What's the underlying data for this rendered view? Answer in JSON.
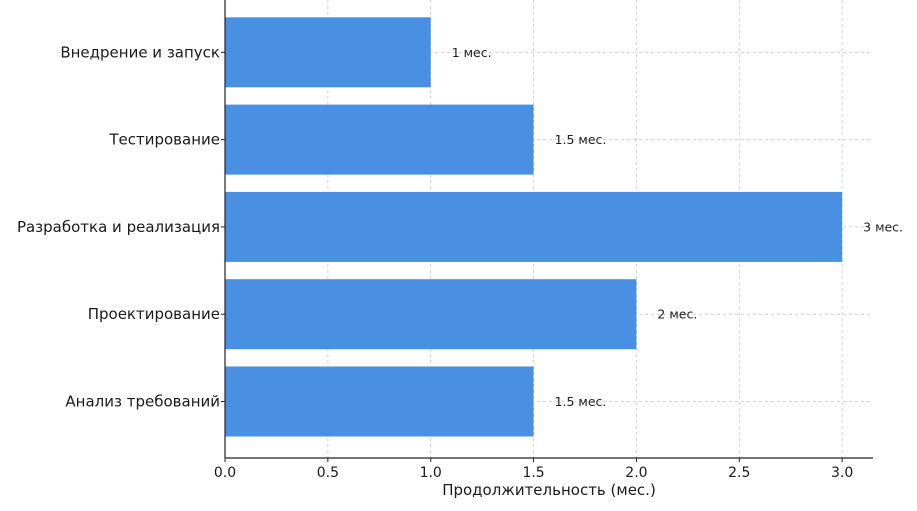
{
  "chart_data": {
    "type": "bar",
    "orientation": "horizontal",
    "categories": [
      "Анализ требований",
      "Проектирование",
      "Разработка и реализация",
      "Тестирование",
      "Внедрение и запуск"
    ],
    "values": [
      1.5,
      2,
      3,
      1.5,
      1
    ],
    "data_labels": [
      "1.5 мес.",
      "2 мес.",
      "3 мес.",
      "1.5 мес.",
      "1 мес."
    ],
    "title": "",
    "xlabel": "Продолжительность (мес.)",
    "ylabel": "",
    "xlim": [
      0,
      3.15
    ],
    "xticks": [
      0,
      0.5,
      1,
      1.5,
      2,
      2.5,
      3
    ],
    "xtick_labels": [
      "0.0",
      "0.5",
      "1.0",
      "1.5",
      "2.0",
      "2.5",
      "3.0"
    ],
    "grid": true,
    "bar_color": "#4a90e2"
  }
}
